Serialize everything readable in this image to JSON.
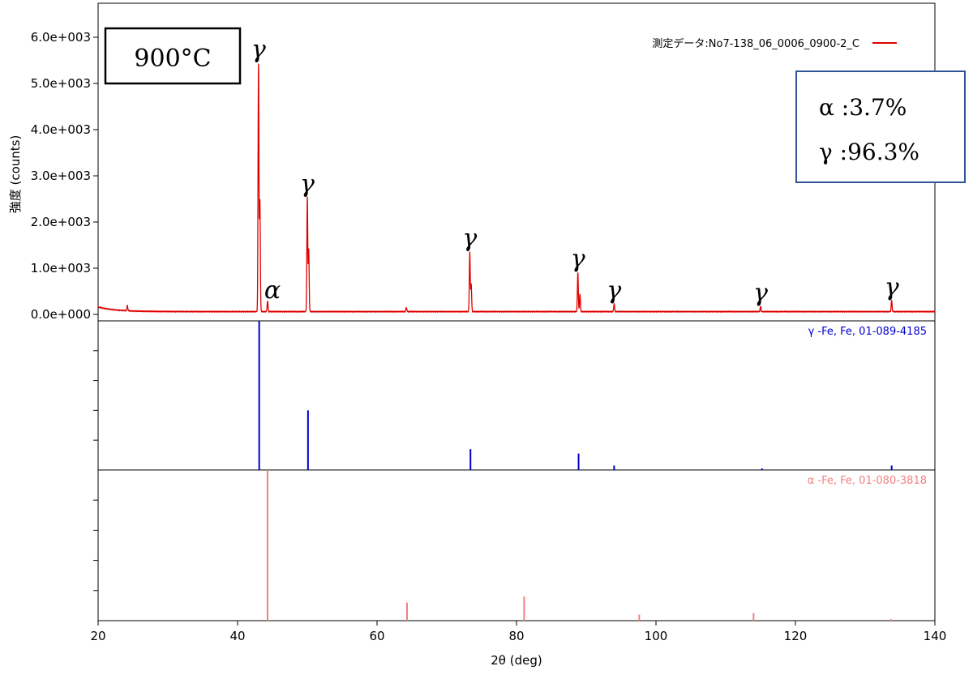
{
  "chart_data": {
    "type": "line",
    "xlabel": "2θ (deg)",
    "ylabel": "強度 (counts)",
    "xlim": [
      20,
      140
    ],
    "ylim": [
      0,
      6000
    ],
    "x_ticks": [
      20,
      40,
      60,
      80,
      100,
      120,
      140
    ],
    "y_ticks": [
      {
        "value": 0,
        "label": "0.0e+000"
      },
      {
        "value": 1000,
        "label": "1.0e+003"
      },
      {
        "value": 2000,
        "label": "2.0e+003"
      },
      {
        "value": 3000,
        "label": "3.0e+003"
      },
      {
        "value": 4000,
        "label": "4.0e+003"
      },
      {
        "value": 5000,
        "label": "5.0e+003"
      },
      {
        "value": 6000,
        "label": "6.0e+003"
      }
    ],
    "legend_position": "top-right",
    "series": [
      {
        "name": "測定データ:No7-138_06_0006_0900-2_C",
        "color": "#e00000",
        "background": 60,
        "peaks": [
          {
            "x": 24.2,
            "y": 110
          },
          {
            "x": 43.0,
            "y": 5350
          },
          {
            "x": 43.2,
            "y": 2400
          },
          {
            "x": 44.3,
            "y": 230
          },
          {
            "x": 50.0,
            "y": 2470
          },
          {
            "x": 50.2,
            "y": 1350
          },
          {
            "x": 64.2,
            "y": 90
          },
          {
            "x": 73.3,
            "y": 1300
          },
          {
            "x": 73.5,
            "y": 600
          },
          {
            "x": 88.8,
            "y": 850
          },
          {
            "x": 89.1,
            "y": 380
          },
          {
            "x": 94.0,
            "y": 170
          },
          {
            "x": 115.0,
            "y": 110
          },
          {
            "x": 133.8,
            "y": 240
          }
        ]
      }
    ],
    "reference_patterns": [
      {
        "label": "γ -Fe, Fe, 01-089-4185",
        "color": "#0000cc",
        "sticks": [
          {
            "x": 43.1,
            "rel": 100
          },
          {
            "x": 50.1,
            "rel": 40
          },
          {
            "x": 73.4,
            "rel": 14
          },
          {
            "x": 88.9,
            "rel": 11
          },
          {
            "x": 94.0,
            "rel": 3
          },
          {
            "x": 115.2,
            "rel": 1
          },
          {
            "x": 133.8,
            "rel": 3
          }
        ]
      },
      {
        "label": "α -Fe, Fe, 01-080-3818",
        "color": "#f08080",
        "sticks": [
          {
            "x": 44.3,
            "rel": 100
          },
          {
            "x": 64.3,
            "rel": 12
          },
          {
            "x": 81.1,
            "rel": 16
          },
          {
            "x": 97.6,
            "rel": 4
          },
          {
            "x": 114.0,
            "rel": 5
          },
          {
            "x": 133.7,
            "rel": 1
          }
        ]
      }
    ],
    "annotations": {
      "temperature": "900°C",
      "phase_alpha": "α :3.7%",
      "phase_gamma": "γ :96.3%",
      "peak_labels": [
        {
          "x": 43.0,
          "y": 5350,
          "text": "γ"
        },
        {
          "x": 44.3,
          "y": 230,
          "text": "α"
        },
        {
          "x": 50.0,
          "y": 2470,
          "text": "γ"
        },
        {
          "x": 73.3,
          "y": 1300,
          "text": "γ"
        },
        {
          "x": 88.8,
          "y": 850,
          "text": "γ"
        },
        {
          "x": 94.0,
          "y": 170,
          "text": "γ"
        },
        {
          "x": 115.0,
          "y": 110,
          "text": "γ"
        },
        {
          "x": 133.8,
          "y": 240,
          "text": "γ"
        }
      ]
    }
  }
}
